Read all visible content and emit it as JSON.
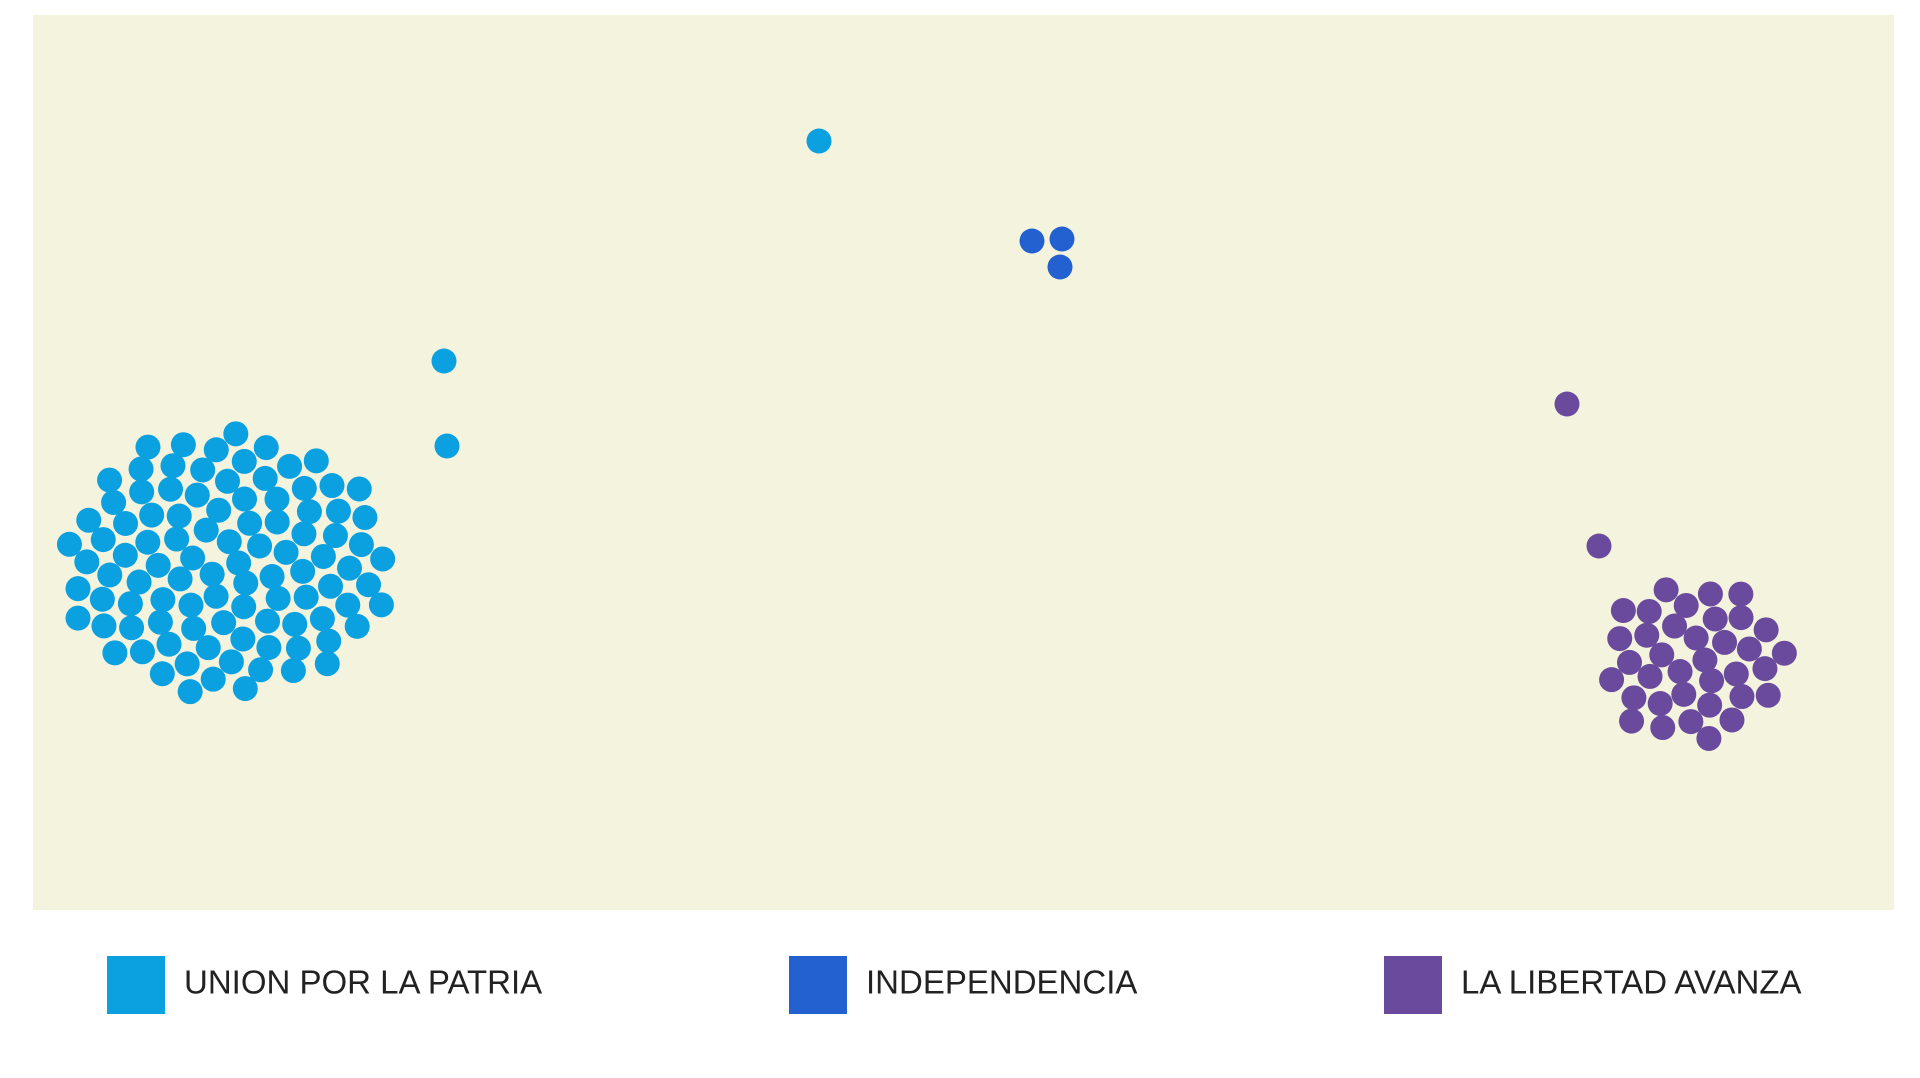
{
  "chart_data": {
    "type": "dot-cluster",
    "series": [
      {
        "name": "UNION POR LA PATRIA",
        "color": "#0ba0e0",
        "values": [
          102
        ]
      },
      {
        "name": "INDEPENDENCIA",
        "color": "#2360d0",
        "values": [
          3
        ]
      },
      {
        "name": "LA LIBERTAD AVANZA",
        "color": "#6a4a9c",
        "values": [
          38
        ]
      }
    ]
  }
}
